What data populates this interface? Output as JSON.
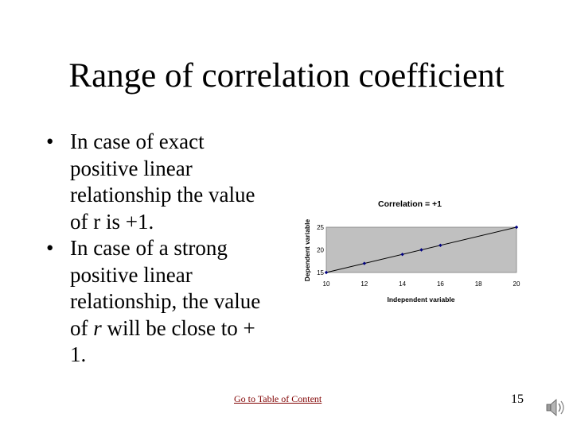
{
  "slide": {
    "title": "Range of correlation coefficient",
    "bullets": [
      {
        "lines": [
          "In case of exact",
          "positive linear",
          "relationship the value",
          "of r is +1."
        ]
      },
      {
        "lines": [
          "In case of a strong",
          "positive linear",
          "relationship, the value",
          "of ",
          "r",
          " will be close to +",
          "1."
        ]
      }
    ],
    "bullet_glyph": "•",
    "footer": {
      "link_label": "Go to Table of Content",
      "page_number": "15"
    },
    "icons": {
      "speaker": "speaker-icon"
    }
  },
  "chart_data": {
    "type": "scatter",
    "title": "Correlation = +1",
    "xlabel": "Independent variable",
    "ylabel": "Dependent variable",
    "x_ticks": [
      "10",
      "12",
      "14",
      "16",
      "18",
      "20"
    ],
    "y_ticks": [
      "15",
      "20",
      "25"
    ],
    "xlim": [
      10,
      20
    ],
    "ylim": [
      15,
      25
    ],
    "series": [
      {
        "x": [
          10,
          12,
          14,
          15,
          16,
          20
        ],
        "y": [
          15,
          17,
          19,
          20,
          21,
          25
        ]
      }
    ],
    "trend_line": true,
    "plot_background": "#c0c0c0",
    "marker_color": "#000080",
    "line_color": "#000000"
  }
}
